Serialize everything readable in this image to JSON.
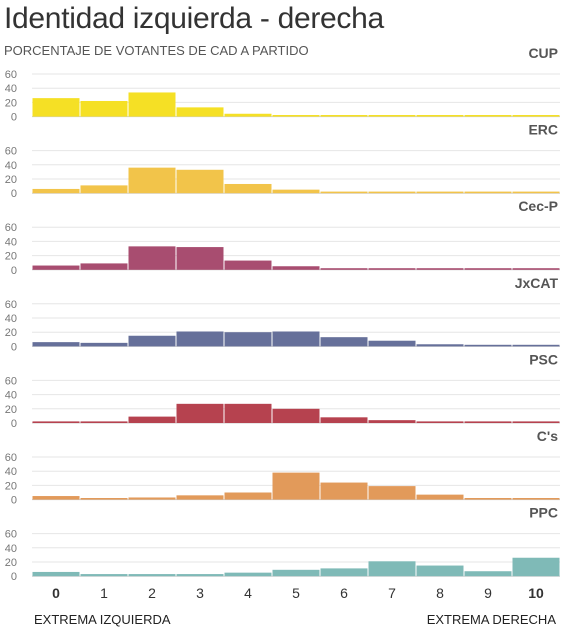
{
  "title": "Identidad izquierda - derecha",
  "subtitle": "PORCENTAJE DE VOTANTES DE CAD A PARTIDO",
  "chart_data": {
    "type": "bar",
    "categories": [
      "0",
      "1",
      "2",
      "3",
      "4",
      "5",
      "6",
      "7",
      "8",
      "9",
      "10"
    ],
    "bold_categories": [
      "0",
      "10"
    ],
    "yticks": [
      0,
      20,
      40,
      60
    ],
    "ylim": [
      0,
      60
    ],
    "x_left_label": "EXTREMA IZQUIERDA",
    "x_right_label": "EXTREMA DERECHA",
    "panels": [
      {
        "name": "CUP",
        "color": "#f5e025",
        "values": [
          26,
          22,
          34,
          13,
          4,
          1,
          0,
          0,
          0,
          0,
          0
        ]
      },
      {
        "name": "ERC",
        "color": "#f2c44a",
        "values": [
          6,
          11,
          36,
          33,
          13,
          5,
          1,
          1,
          1,
          0,
          0
        ]
      },
      {
        "name": "Cec-P",
        "color": "#a84d70",
        "values": [
          6,
          9,
          33,
          32,
          13,
          5,
          1,
          1,
          1,
          0,
          0
        ]
      },
      {
        "name": "JxCAT",
        "color": "#66709a",
        "values": [
          6,
          5,
          15,
          21,
          20,
          21,
          13,
          8,
          3,
          0,
          0
        ]
      },
      {
        "name": "PSC",
        "color": "#b6424f",
        "values": [
          2,
          1,
          9,
          27,
          27,
          20,
          8,
          4,
          1,
          0,
          0
        ]
      },
      {
        "name": "C's",
        "color": "#e29a5a",
        "values": [
          5,
          2,
          3,
          6,
          10,
          38,
          24,
          19,
          7,
          1,
          0
        ]
      },
      {
        "name": "PPC",
        "color": "#7fbab7",
        "values": [
          6,
          3,
          3,
          3,
          5,
          9,
          11,
          21,
          15,
          7,
          26
        ]
      }
    ]
  }
}
